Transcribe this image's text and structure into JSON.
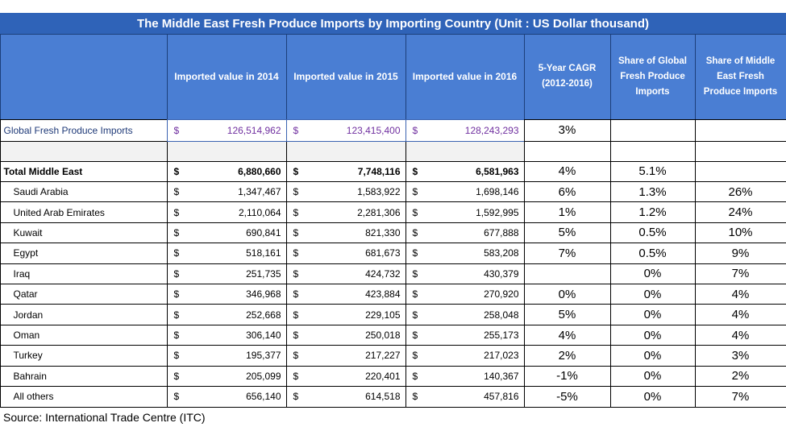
{
  "title": "The Middle East Fresh Produce Imports by Importing Country  (Unit : US Dollar thousand)",
  "headers": [
    "Imported value in 2014",
    "Imported value in 2015",
    "Imported value in 2016",
    "5-Year CAGR (2012-2016)",
    "Share of Global Fresh Produce Imports",
    "Share of Middle East Fresh Produce Imports"
  ],
  "currency": "$",
  "rows": [
    {
      "label": "Global Fresh Produce Imports",
      "values": [
        "126,514,962",
        "123,415,400",
        "128,243,293"
      ],
      "cagr": "3%",
      "share_global": null,
      "share_me": null
    },
    {
      "label": "Total Middle East",
      "values": [
        "6,880,660",
        "7,748,116",
        "6,581,963"
      ],
      "cagr": "4%",
      "share_global": "5.1%",
      "share_me": null
    },
    {
      "label": "Saudi Arabia",
      "values": [
        "1,347,467",
        "1,583,922",
        "1,698,146"
      ],
      "cagr": "6%",
      "share_global": "1.3%",
      "share_me": "26%"
    },
    {
      "label": "United Arab Emirates",
      "values": [
        "2,110,064",
        "2,281,306",
        "1,592,995"
      ],
      "cagr": "1%",
      "share_global": "1.2%",
      "share_me": "24%"
    },
    {
      "label": "Kuwait",
      "values": [
        "690,841",
        "821,330",
        "677,888"
      ],
      "cagr": "5%",
      "share_global": "0.5%",
      "share_me": "10%"
    },
    {
      "label": "Egypt",
      "values": [
        "518,161",
        "681,673",
        "583,208"
      ],
      "cagr": "7%",
      "share_global": "0.5%",
      "share_me": "9%"
    },
    {
      "label": "Iraq",
      "values": [
        "251,735",
        "424,732",
        "430,379"
      ],
      "cagr": null,
      "share_global": "0%",
      "share_me": "7%"
    },
    {
      "label": "Qatar",
      "values": [
        "346,968",
        "423,884",
        "270,920"
      ],
      "cagr": "0%",
      "share_global": "0%",
      "share_me": "4%"
    },
    {
      "label": "Jordan",
      "values": [
        "252,668",
        "229,105",
        "258,048"
      ],
      "cagr": "5%",
      "share_global": "0%",
      "share_me": "4%"
    },
    {
      "label": "Oman",
      "values": [
        "306,140",
        "250,018",
        "255,173"
      ],
      "cagr": "4%",
      "share_global": "0%",
      "share_me": "4%"
    },
    {
      "label": "Turkey",
      "values": [
        "195,377",
        "217,227",
        "217,023"
      ],
      "cagr": "2%",
      "share_global": "0%",
      "share_me": "3%"
    },
    {
      "label": "Bahrain",
      "values": [
        "205,099",
        "220,401",
        "140,367"
      ],
      "cagr": "-1%",
      "share_global": "0%",
      "share_me": "2%"
    },
    {
      "label": "All others",
      "values": [
        "656,140",
        "614,518",
        "457,816"
      ],
      "cagr": "-5%",
      "share_global": "0%",
      "share_me": "7%"
    }
  ],
  "source": "Source: International Trade Centre (ITC)"
}
